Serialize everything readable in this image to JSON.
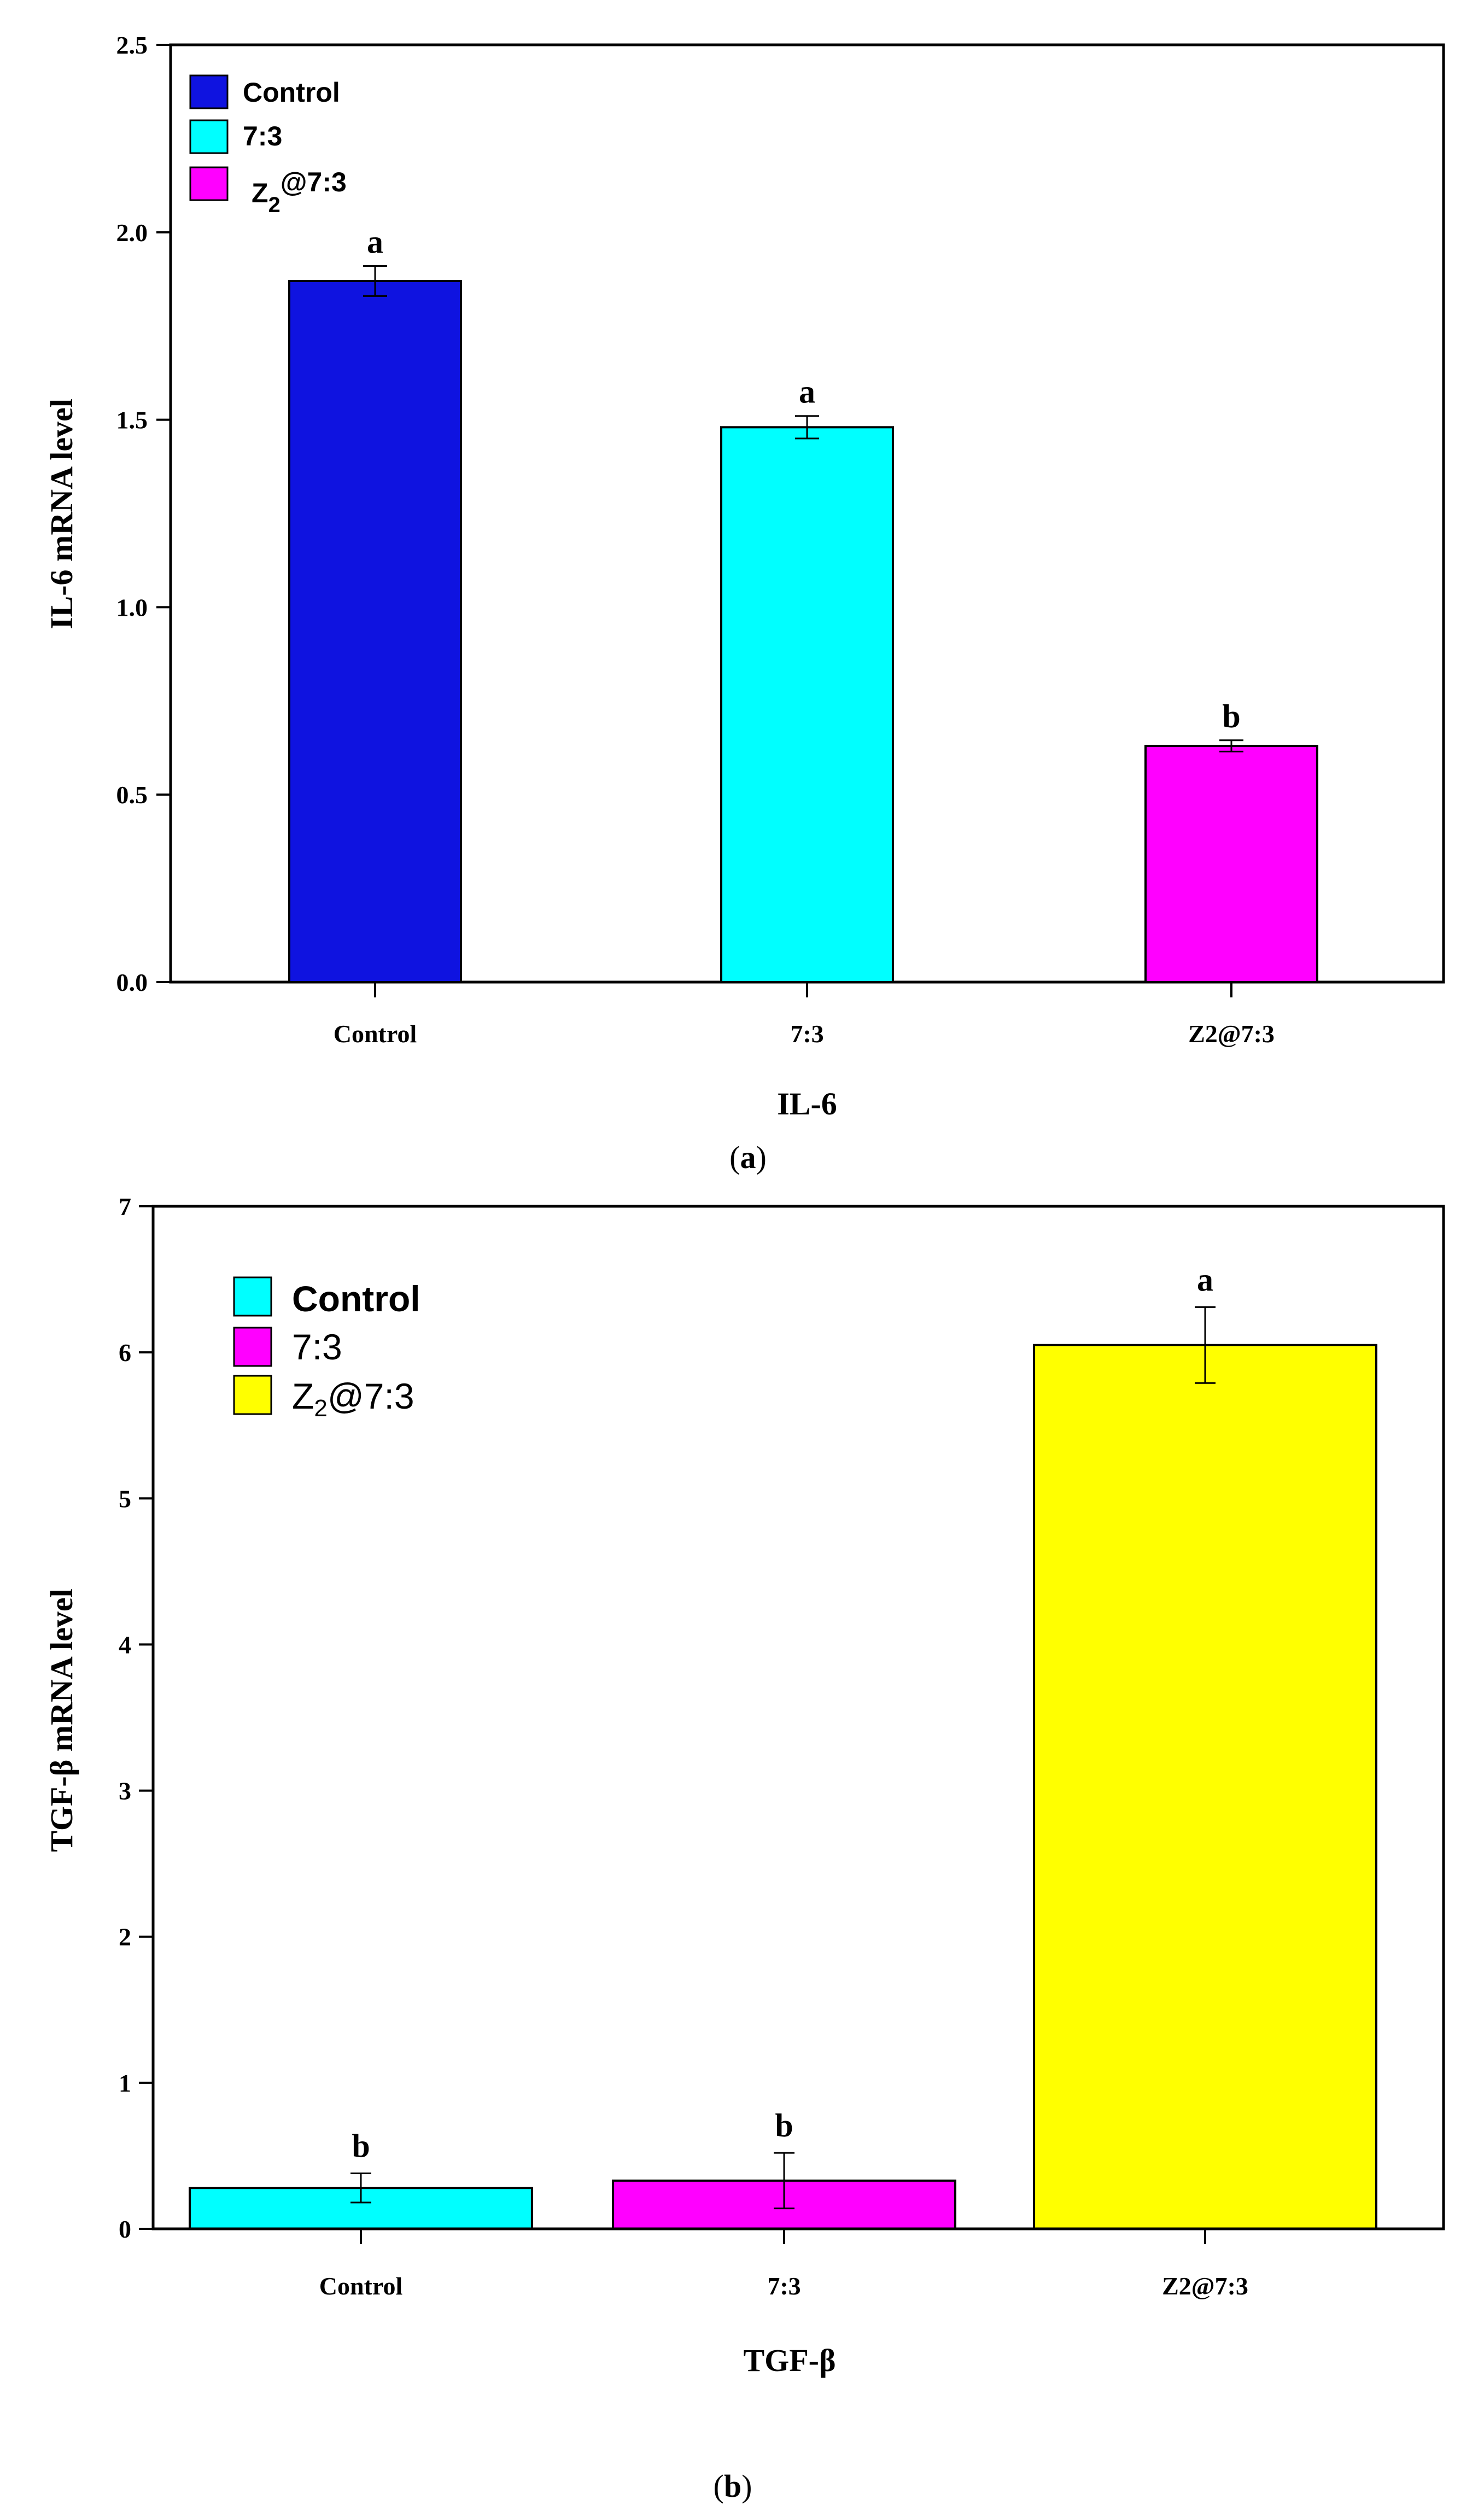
{
  "chart_data": [
    {
      "type": "bar",
      "panel_label": "a",
      "categories": [
        "Control",
        "7:3",
        "Z2@7:3"
      ],
      "values": [
        1.87,
        1.48,
        0.63
      ],
      "errors": [
        0.04,
        0.03,
        0.015
      ],
      "significance": [
        "a",
        "a",
        "b"
      ],
      "colors": [
        "#0f13e0",
        "#00ffff",
        "#ff00ff"
      ],
      "xlabel": "IL-6",
      "ylabel": "IL-6 mRNA level",
      "ylim": [
        0,
        2.5
      ],
      "yticks": [
        "0.0",
        "0.5",
        "1.0",
        "1.5",
        "2.0",
        "2.5"
      ],
      "ytick_values": [
        0,
        0.5,
        1.0,
        1.5,
        2.0,
        2.5
      ],
      "legend": {
        "position": "top-left",
        "entries": [
          {
            "label": "Control",
            "color": "#0f13e0"
          },
          {
            "label": "7:3",
            "color": "#00ffff"
          },
          {
            "label_main": "Z",
            "label_sub": "2",
            "label_rest": "@7:3",
            "color": "#ff00ff"
          }
        ]
      }
    },
    {
      "type": "bar",
      "panel_label": "b",
      "categories": [
        "Control",
        "7:3",
        "Z2@7:3"
      ],
      "values": [
        0.28,
        0.33,
        6.05
      ],
      "errors": [
        0.1,
        0.19,
        0.26
      ],
      "significance": [
        "b",
        "b",
        "a"
      ],
      "colors": [
        "#00ffff",
        "#ff00ff",
        "#ffff00"
      ],
      "xlabel": "TGF-β",
      "ylabel": "TGF-β mRNA level",
      "ylim": [
        0,
        7
      ],
      "yticks": [
        "0",
        "1",
        "2",
        "3",
        "4",
        "5",
        "6",
        "7"
      ],
      "ytick_values": [
        0,
        1,
        2,
        3,
        4,
        5,
        6,
        7
      ],
      "legend": {
        "position": "top-left",
        "entries": [
          {
            "label": "Control",
            "color": "#00ffff"
          },
          {
            "label": "7:3",
            "color": "#ff00ff"
          },
          {
            "label_main": "Z",
            "label_sub": "2",
            "label_rest": "@7:3",
            "color": "#ffff00"
          }
        ]
      }
    }
  ]
}
